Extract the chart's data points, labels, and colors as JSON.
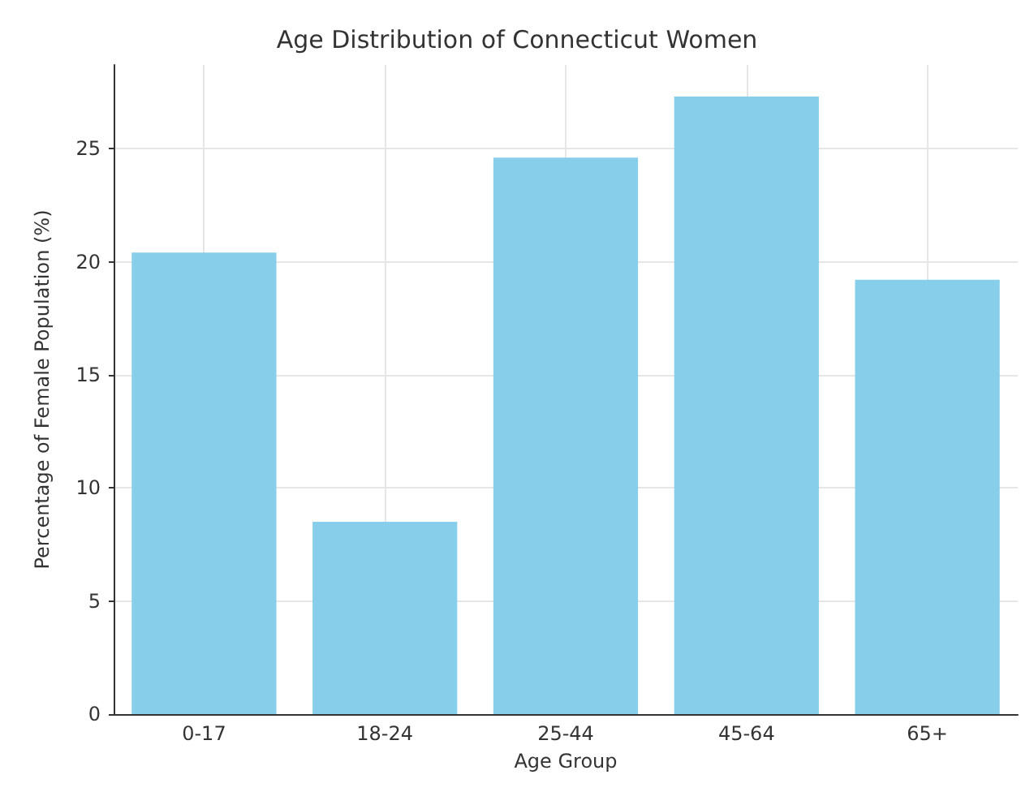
{
  "chart_data": {
    "type": "bar",
    "title": "Age Distribution of Connecticut Women",
    "xlabel": "Age Group",
    "ylabel": "Percentage of Female Population (%)",
    "categories": [
      "0-17",
      "18-24",
      "25-44",
      "45-64",
      "65+"
    ],
    "values": [
      20.4,
      8.5,
      24.6,
      27.3,
      19.2
    ],
    "color": "#87ceeb",
    "ylim": [
      0,
      28.7
    ],
    "yticks": [
      0,
      5,
      10,
      15,
      20,
      25
    ],
    "grid": true
  }
}
